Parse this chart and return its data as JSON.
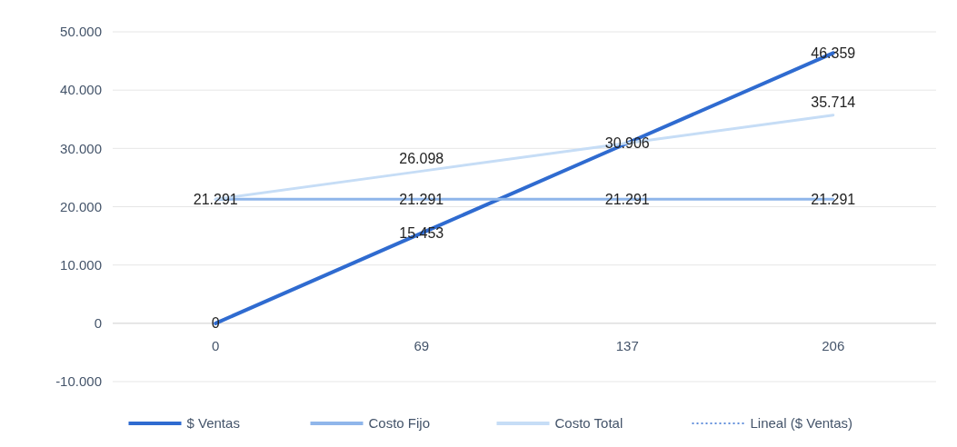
{
  "chart_data": {
    "type": "line",
    "categories": [
      "0",
      "69",
      "137",
      "206"
    ],
    "ylim": [
      -10000,
      50000
    ],
    "yticks": [
      {
        "value": -10000,
        "label": "-10.000"
      },
      {
        "value": 0,
        "label": "0"
      },
      {
        "value": 10000,
        "label": "10.000"
      },
      {
        "value": 20000,
        "label": "20.000"
      },
      {
        "value": 30000,
        "label": "30.000"
      },
      {
        "value": 40000,
        "label": "40.000"
      },
      {
        "value": 50000,
        "label": "50.000"
      }
    ],
    "grid": "y",
    "legend": "bottom",
    "marker": "none",
    "series": [
      {
        "name": "$ Ventas",
        "color": "#2f6bd0",
        "values": [
          0,
          15453,
          30906,
          46359
        ],
        "value_labels": [
          "0",
          "15.453",
          "30.906",
          "46.359"
        ]
      },
      {
        "name": "Costo Fijo",
        "color": "#8fb6ea",
        "values": [
          21291,
          21291,
          21291,
          21291
        ],
        "value_labels": [
          "21.291",
          "21.291",
          "21.291",
          "21.291"
        ]
      },
      {
        "name": "Costo Total",
        "color": "#c6ddf6",
        "values": [
          21291,
          26098,
          30906,
          35714
        ],
        "value_labels": [
          null,
          "26.098",
          null,
          "35.714"
        ]
      },
      {
        "name": "Lineal ($ Ventas)",
        "color": "#2f6bd0",
        "line_style": "dotted",
        "values": [
          null,
          null,
          null,
          null
        ]
      }
    ]
  }
}
